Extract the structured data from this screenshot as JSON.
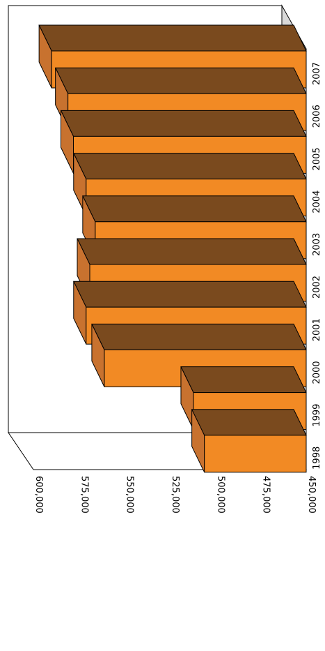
{
  "chart_data": {
    "type": "bar",
    "orientation": "horizontal-3d",
    "categories": [
      "1998",
      "1999",
      "2000",
      "2001",
      "2002",
      "2003",
      "2004",
      "2005",
      "2006",
      "2007"
    ],
    "values": [
      506000,
      512000,
      561000,
      571000,
      569000,
      566000,
      571000,
      578000,
      581000,
      590000
    ],
    "xlim": [
      450000,
      600000
    ],
    "ticks": [
      "450,000",
      "475,000",
      "500,000",
      "525,000",
      "550,000",
      "575,000",
      "600,000"
    ],
    "colors": {
      "front": "#F28A24",
      "top": "#7A4A1E",
      "side": "#C8722F"
    },
    "grid": false,
    "legend": "none"
  }
}
